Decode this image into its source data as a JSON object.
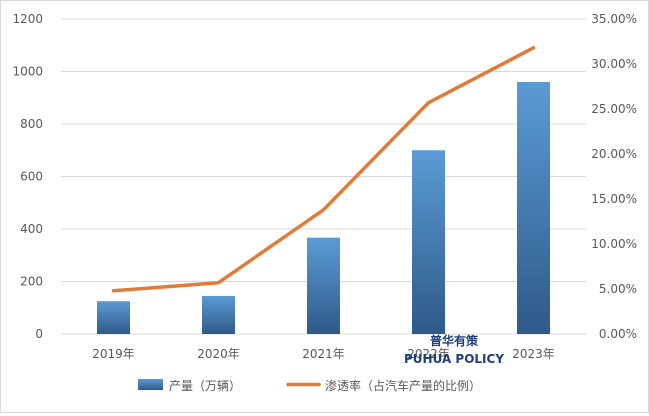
{
  "chart_data": {
    "type": "bar",
    "categories": [
      "2019年",
      "2020年",
      "2021年",
      "2022年",
      "2023年"
    ],
    "series": [
      {
        "name": "产量（万辆）",
        "type": "bar",
        "axis": "left",
        "values": [
          125,
          145,
          367,
          700,
          960
        ],
        "color": "#3d78b4"
      },
      {
        "name": "渗透率（占汽车产量的比例）",
        "type": "line",
        "axis": "right",
        "values": [
          4.8,
          5.7,
          13.8,
          25.7,
          31.8
        ],
        "color": "#e07b39"
      }
    ],
    "y_left": {
      "ylim": [
        0,
        1200
      ],
      "ticks": [
        0,
        200,
        400,
        600,
        800,
        1000,
        1200
      ],
      "tick_labels": [
        "0",
        "200",
        "400",
        "600",
        "800",
        "1000",
        "1200"
      ]
    },
    "y_right": {
      "ylim": [
        0,
        35
      ],
      "ticks": [
        0,
        5,
        10,
        15,
        20,
        25,
        30,
        35
      ],
      "tick_labels": [
        "0.00%",
        "5.00%",
        "10.00%",
        "15.00%",
        "20.00%",
        "25.00%",
        "30.00%",
        "35.00%"
      ]
    },
    "grid": true,
    "legend": "bottom",
    "xlabel": "",
    "ylabel": ""
  },
  "watermark": {
    "title": "普华有策",
    "subtitle": "PUHUA POLICY"
  }
}
